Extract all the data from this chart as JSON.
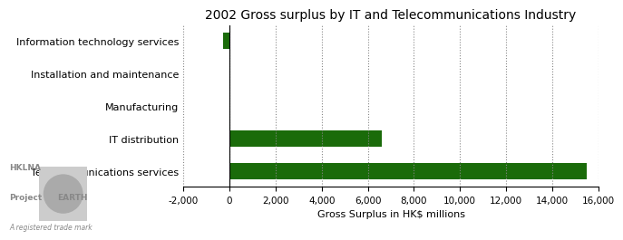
{
  "title": "2002 Gross surplus by IT and Telecommunications Industry",
  "categories": [
    "Telecommunications services",
    "IT distribution",
    "Manufacturing",
    "Installation and maintenance",
    "Information technology services"
  ],
  "values": [
    15500,
    6600,
    30,
    50,
    -280
  ],
  "bar_color": "#1a6b0a",
  "xlabel": "Gross Surplus in HK$ millions",
  "xlim": [
    -2000,
    16000
  ],
  "xticks": [
    -2000,
    0,
    2000,
    4000,
    6000,
    8000,
    10000,
    12000,
    14000,
    16000
  ],
  "xtick_labels": [
    "-2,000",
    "0",
    "2,000",
    "4,000",
    "6,000",
    "8,000",
    "10,000",
    "12,000",
    "14,000",
    "16,000"
  ],
  "background_color": "#ffffff",
  "title_fontsize": 10,
  "label_fontsize": 8,
  "tick_fontsize": 7.5,
  "ylabel_fontsize": 8
}
